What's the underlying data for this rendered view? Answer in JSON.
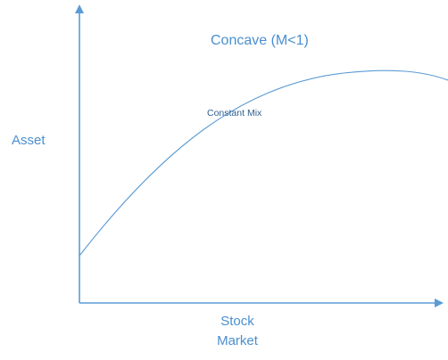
{
  "diagram": {
    "title": "Concave (M<1)",
    "y_axis_label": "Asset",
    "x_axis_label_line1": "Stock",
    "x_axis_label_line2": "Market",
    "curve_label": "Constant Mix",
    "line_color": "#5b9bd5",
    "text_color": "#4a8fcf"
  }
}
